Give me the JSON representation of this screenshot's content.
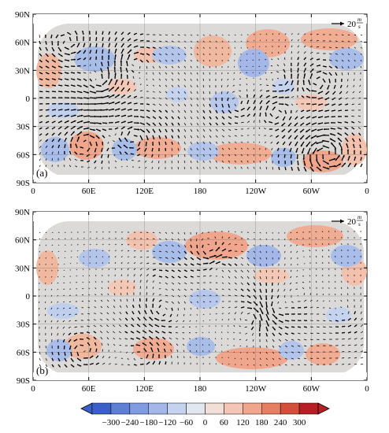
{
  "panels": [
    {
      "label": "(a)",
      "reference_vector": {
        "magnitude": "20",
        "unit_num": "m",
        "unit_den": "s"
      }
    },
    {
      "label": "(b)",
      "reference_vector": {
        "magnitude": "20",
        "unit_num": "m",
        "unit_den": "s"
      }
    }
  ],
  "axes": {
    "lon_ticks": [
      "0",
      "60E",
      "120E",
      "180",
      "120W",
      "60W",
      "0"
    ],
    "lat_ticks": [
      "90N",
      "60N",
      "30N",
      "0",
      "30S",
      "60S",
      "90S"
    ]
  },
  "colorbar": {
    "ticks": [
      "-300",
      "-240",
      "-180",
      "-120",
      "-60",
      "0",
      "60",
      "120",
      "180",
      "240",
      "300"
    ],
    "colors": [
      "#3a5fc9",
      "#5d7fd6",
      "#7f9ce0",
      "#a3b8e8",
      "#c5d3ef",
      "#e2e6ef",
      "#f0ded7",
      "#f3c5b4",
      "#f0a68c",
      "#e57e62",
      "#d34e3b",
      "#b61f25"
    ]
  },
  "colors": {
    "ocean_neutral": "#d9d9d9",
    "blue": "#a8bde8",
    "red": "#f1ad93",
    "arrow": "#000000"
  }
}
